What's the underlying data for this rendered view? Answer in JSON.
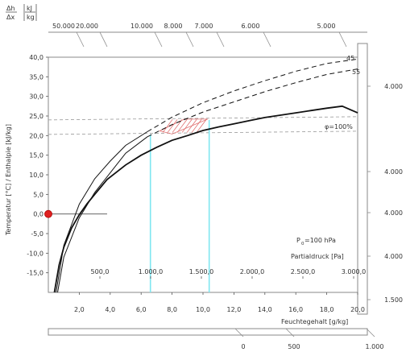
{
  "chart_data": {
    "type": "line",
    "title": "",
    "xlabel": "Feuchtegehalt [g/kg]",
    "ylabel": "Temperatur [°C] / Enthalpie [kJ/kg]",
    "xlim": [
      0,
      20
    ],
    "ylim": [
      -20,
      40
    ],
    "grid": false,
    "x_ticks": [
      "2,0",
      "4,0",
      "6,0",
      "8,0",
      "10,0",
      "12,0",
      "14,0",
      "16,0",
      "18,0",
      "20,0"
    ],
    "y_ticks": [
      "40,0",
      "35,0",
      "30,0",
      "25,0",
      "20,0",
      "15,0",
      "10,0",
      "5,0",
      "0,0",
      "-5,0",
      "-10,0",
      "-15,0"
    ],
    "partial_pressure_ticks": [
      "500,0",
      "1.000,0",
      "1.500,0",
      "2.000,0",
      "2.500,0",
      "3.000,0"
    ],
    "partial_pressure_label": "Partialdruck [Pa]",
    "pressure_label": "P",
    "pressure_subscript": "0",
    "pressure_value": "=100 hPa",
    "top_axis": {
      "numerator": "Δh",
      "denominator": "Δx",
      "unit_top": "kJ",
      "unit_bottom": "kg",
      "ticks": [
        "50.000",
        "20.000",
        "10.000",
        "8.000",
        "7.000",
        "6.000",
        "5.000"
      ]
    },
    "right_ticks": [
      "4.000",
      "4.000",
      "4.000",
      "4.000",
      "1.500"
    ],
    "bottom_ticks": [
      "0",
      "500",
      "1.000"
    ],
    "series": [
      {
        "name": "φ=100%",
        "style": "solid",
        "x": [
          0.39,
          0.5,
          0.7,
          1.0,
          1.5,
          2.0,
          2.5,
          3.0,
          3.8,
          5.0,
          6.0,
          7.0,
          8.0,
          9.0,
          10.0,
          11.0,
          12.0,
          13.0,
          14.0,
          15.0,
          16.0,
          17.0,
          18.0,
          19.0,
          20.0
        ],
        "y": [
          -20.0,
          -17.5,
          -13.0,
          -8.5,
          -3.6,
          -0.2,
          2.6,
          5.0,
          8.8,
          12.5,
          15.0,
          17.0,
          18.8,
          20.0,
          21.3,
          22.2,
          23.0,
          23.8,
          24.6,
          25.2,
          25.8,
          26.4,
          27.0,
          27.5,
          25.8
        ]
      },
      {
        "name": "",
        "style": "solid-thin",
        "x": [
          0.6,
          1.0,
          2.0,
          3.0,
          4.0,
          5.0,
          6.4
        ],
        "y": [
          -20.0,
          -11.0,
          -1.0,
          5.5,
          10.5,
          15.5,
          19.7
        ]
      },
      {
        "name": "",
        "style": "solid-thin",
        "x": [
          0.5,
          1.0,
          2.0,
          3.0,
          4.0,
          5.0,
          6.4
        ],
        "y": [
          -20.0,
          -8.0,
          2.5,
          9.0,
          13.5,
          17.5,
          21.0
        ]
      },
      {
        "name": "55",
        "style": "dashed",
        "x": [
          6.4,
          8.0,
          10.0,
          12.0,
          14.0,
          16.0,
          18.0,
          20.0
        ],
        "y": [
          19.7,
          22.8,
          26.0,
          28.6,
          31.2,
          33.5,
          35.6,
          37.0
        ]
      },
      {
        "name": "45",
        "style": "dashed",
        "x": [
          6.4,
          8.0,
          10.0,
          12.0,
          14.0,
          16.0,
          18.0,
          20.0
        ],
        "y": [
          21.0,
          24.7,
          28.4,
          31.4,
          34.0,
          36.4,
          38.4,
          39.5
        ]
      }
    ],
    "reference_lines": [
      {
        "type": "horizontal",
        "y": 24.0,
        "style": "dashed"
      },
      {
        "type": "horizontal",
        "y": 20.3,
        "style": "dashed"
      },
      {
        "type": "vertical",
        "x": 6.6,
        "color": "#7fe6f0"
      },
      {
        "type": "vertical",
        "x": 10.4,
        "color": "#7fe6f0"
      }
    ],
    "hatched_region": {
      "x": [
        7.2,
        8.8,
        10.3,
        8.0
      ],
      "y": [
        21.2,
        24.2,
        24.2,
        20.4
      ],
      "color": "#e07070"
    },
    "state_point": {
      "x": 0.0,
      "y": 0.0,
      "color": "#e02020"
    },
    "annotations": [
      "φ=100%",
      "45",
      "55"
    ]
  }
}
